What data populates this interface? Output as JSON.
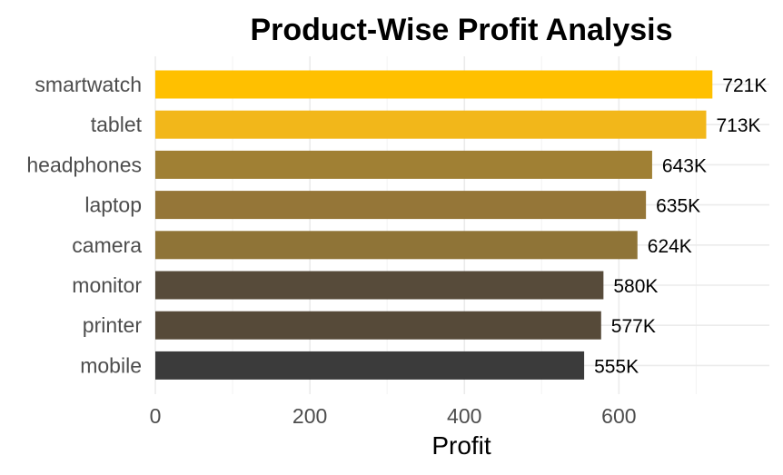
{
  "chart_data": {
    "type": "bar",
    "orientation": "horizontal",
    "title": "Product-Wise Profit Analysis",
    "xlabel": "Profit",
    "ylabel": "",
    "categories": [
      "smartwatch",
      "tablet",
      "headphones",
      "laptop",
      "camera",
      "monitor",
      "printer",
      "mobile"
    ],
    "values": [
      721,
      713,
      643,
      635,
      624,
      580,
      577,
      555
    ],
    "data_labels": [
      "721K",
      "713K",
      "643K",
      "635K",
      "624K",
      "580K",
      "577K",
      "555K"
    ],
    "bar_colors": [
      "#ffc000",
      "#f2b71a",
      "#a08034",
      "#957638",
      "#8f7437",
      "#574b3a",
      "#564a39",
      "#3b3b3b"
    ],
    "xlim": [
      0,
      800
    ],
    "xticks": [
      0,
      200,
      400,
      600
    ],
    "xtick_labels": [
      "0",
      "200",
      "400",
      "600"
    ],
    "grid": true,
    "legend": "none"
  }
}
